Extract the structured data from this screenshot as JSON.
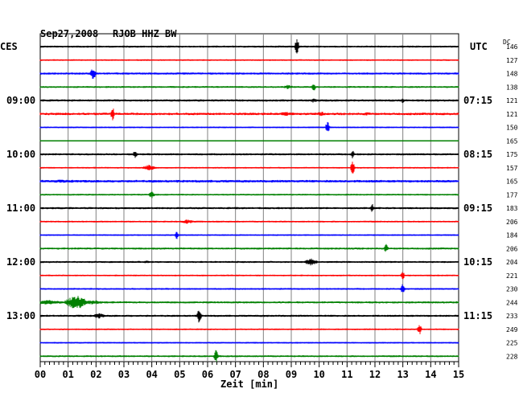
{
  "header": {
    "date": "Sep27,2008",
    "station": "RJOB HHZ BW",
    "left_tz": "CES",
    "right_tz": "UTC",
    "dc_label": "DC"
  },
  "chart_data": {
    "type": "line",
    "title": "Sep27,2008   RJOB HHZ BW",
    "xlabel": "Zeit [min]",
    "ylabel": "",
    "xlim": [
      0,
      15
    ],
    "x_ticks": [
      "00",
      "01",
      "02",
      "03",
      "04",
      "05",
      "06",
      "07",
      "08",
      "09",
      "10",
      "11",
      "12",
      "13",
      "14",
      "15"
    ],
    "grid": true,
    "row_colors": [
      "#000000",
      "#ff0000",
      "#0000ff",
      "#008000"
    ],
    "left_time_labels": [
      {
        "row": 4,
        "label": "09:00"
      },
      {
        "row": 8,
        "label": "10:00"
      },
      {
        "row": 12,
        "label": "11:00"
      },
      {
        "row": 16,
        "label": "12:00"
      },
      {
        "row": 20,
        "label": "13:00"
      }
    ],
    "right_time_labels": [
      {
        "row": 4,
        "label": "07:15"
      },
      {
        "row": 8,
        "label": "08:15"
      },
      {
        "row": 12,
        "label": "09:15"
      },
      {
        "row": 16,
        "label": "10:15"
      },
      {
        "row": 20,
        "label": "11:15"
      }
    ],
    "dc_offsets": [
      146,
      127,
      148,
      138,
      121,
      121,
      150,
      165,
      175,
      157,
      165,
      177,
      183,
      206,
      184,
      206,
      204,
      221,
      230,
      244,
      233,
      249,
      225,
      228
    ],
    "row_noise": [
      1.2,
      1.0,
      1.3,
      1.2,
      1.4,
      1.5,
      1.0,
      0.8,
      1.3,
      1.0,
      1.6,
      1.1,
      1.3,
      1.1,
      1.0,
      1.3,
      1.2,
      1.0,
      1.1,
      1.3,
      1.3,
      1.0,
      1.0,
      1.2
    ],
    "events": [
      {
        "row": 0,
        "minute": 9.2,
        "amplitude": 14,
        "duration": 0.1
      },
      {
        "row": 2,
        "minute": 1.9,
        "amplitude": 8,
        "duration": 0.15
      },
      {
        "row": 3,
        "minute": 8.9,
        "amplitude": 3,
        "duration": 0.3
      },
      {
        "row": 3,
        "minute": 9.8,
        "amplitude": 7,
        "duration": 0.1
      },
      {
        "row": 4,
        "minute": 9.8,
        "amplitude": 3,
        "duration": 0.2
      },
      {
        "row": 4,
        "minute": 13.0,
        "amplitude": 4,
        "duration": 0.1
      },
      {
        "row": 5,
        "minute": 2.6,
        "amplitude": 9,
        "duration": 0.1
      },
      {
        "row": 5,
        "minute": 8.8,
        "amplitude": 3,
        "duration": 0.4
      },
      {
        "row": 5,
        "minute": 10.1,
        "amplitude": 3,
        "duration": 0.4
      },
      {
        "row": 5,
        "minute": 11.7,
        "amplitude": 2,
        "duration": 0.6
      },
      {
        "row": 6,
        "minute": 10.3,
        "amplitude": 9,
        "duration": 0.1
      },
      {
        "row": 8,
        "minute": 3.4,
        "amplitude": 6,
        "duration": 0.1
      },
      {
        "row": 8,
        "minute": 11.2,
        "amplitude": 6,
        "duration": 0.1
      },
      {
        "row": 9,
        "minute": 3.9,
        "amplitude": 4,
        "duration": 0.35
      },
      {
        "row": 9,
        "minute": 11.2,
        "amplitude": 10,
        "duration": 0.1
      },
      {
        "row": 10,
        "minute": 0.8,
        "amplitude": 2,
        "duration": 3.0
      },
      {
        "row": 10,
        "minute": 4.0,
        "amplitude": 2,
        "duration": 0.4
      },
      {
        "row": 11,
        "minute": 4.0,
        "amplitude": 5,
        "duration": 0.15
      },
      {
        "row": 12,
        "minute": 11.9,
        "amplitude": 6,
        "duration": 0.1
      },
      {
        "row": 13,
        "minute": 5.3,
        "amplitude": 3,
        "duration": 0.4
      },
      {
        "row": 14,
        "minute": 4.9,
        "amplitude": 6,
        "duration": 0.1
      },
      {
        "row": 15,
        "minute": 12.4,
        "amplitude": 6,
        "duration": 0.1
      },
      {
        "row": 16,
        "minute": 3.8,
        "amplitude": 2,
        "duration": 0.3
      },
      {
        "row": 16,
        "minute": 9.7,
        "amplitude": 5,
        "duration": 0.35
      },
      {
        "row": 17,
        "minute": 13.0,
        "amplitude": 6,
        "duration": 0.1
      },
      {
        "row": 18,
        "minute": 13.0,
        "amplitude": 9,
        "duration": 0.1
      },
      {
        "row": 19,
        "minute": 0.3,
        "amplitude": 3,
        "duration": 0.9
      },
      {
        "row": 19,
        "minute": 1.3,
        "amplitude": 10,
        "duration": 0.55
      },
      {
        "row": 19,
        "minute": 1.9,
        "amplitude": 3,
        "duration": 0.6
      },
      {
        "row": 20,
        "minute": 2.1,
        "amplitude": 4,
        "duration": 0.3
      },
      {
        "row": 20,
        "minute": 5.7,
        "amplitude": 12,
        "duration": 0.1
      },
      {
        "row": 21,
        "minute": 13.6,
        "amplitude": 8,
        "duration": 0.1
      },
      {
        "row": 23,
        "minute": 6.3,
        "amplitude": 9,
        "duration": 0.1
      }
    ]
  }
}
